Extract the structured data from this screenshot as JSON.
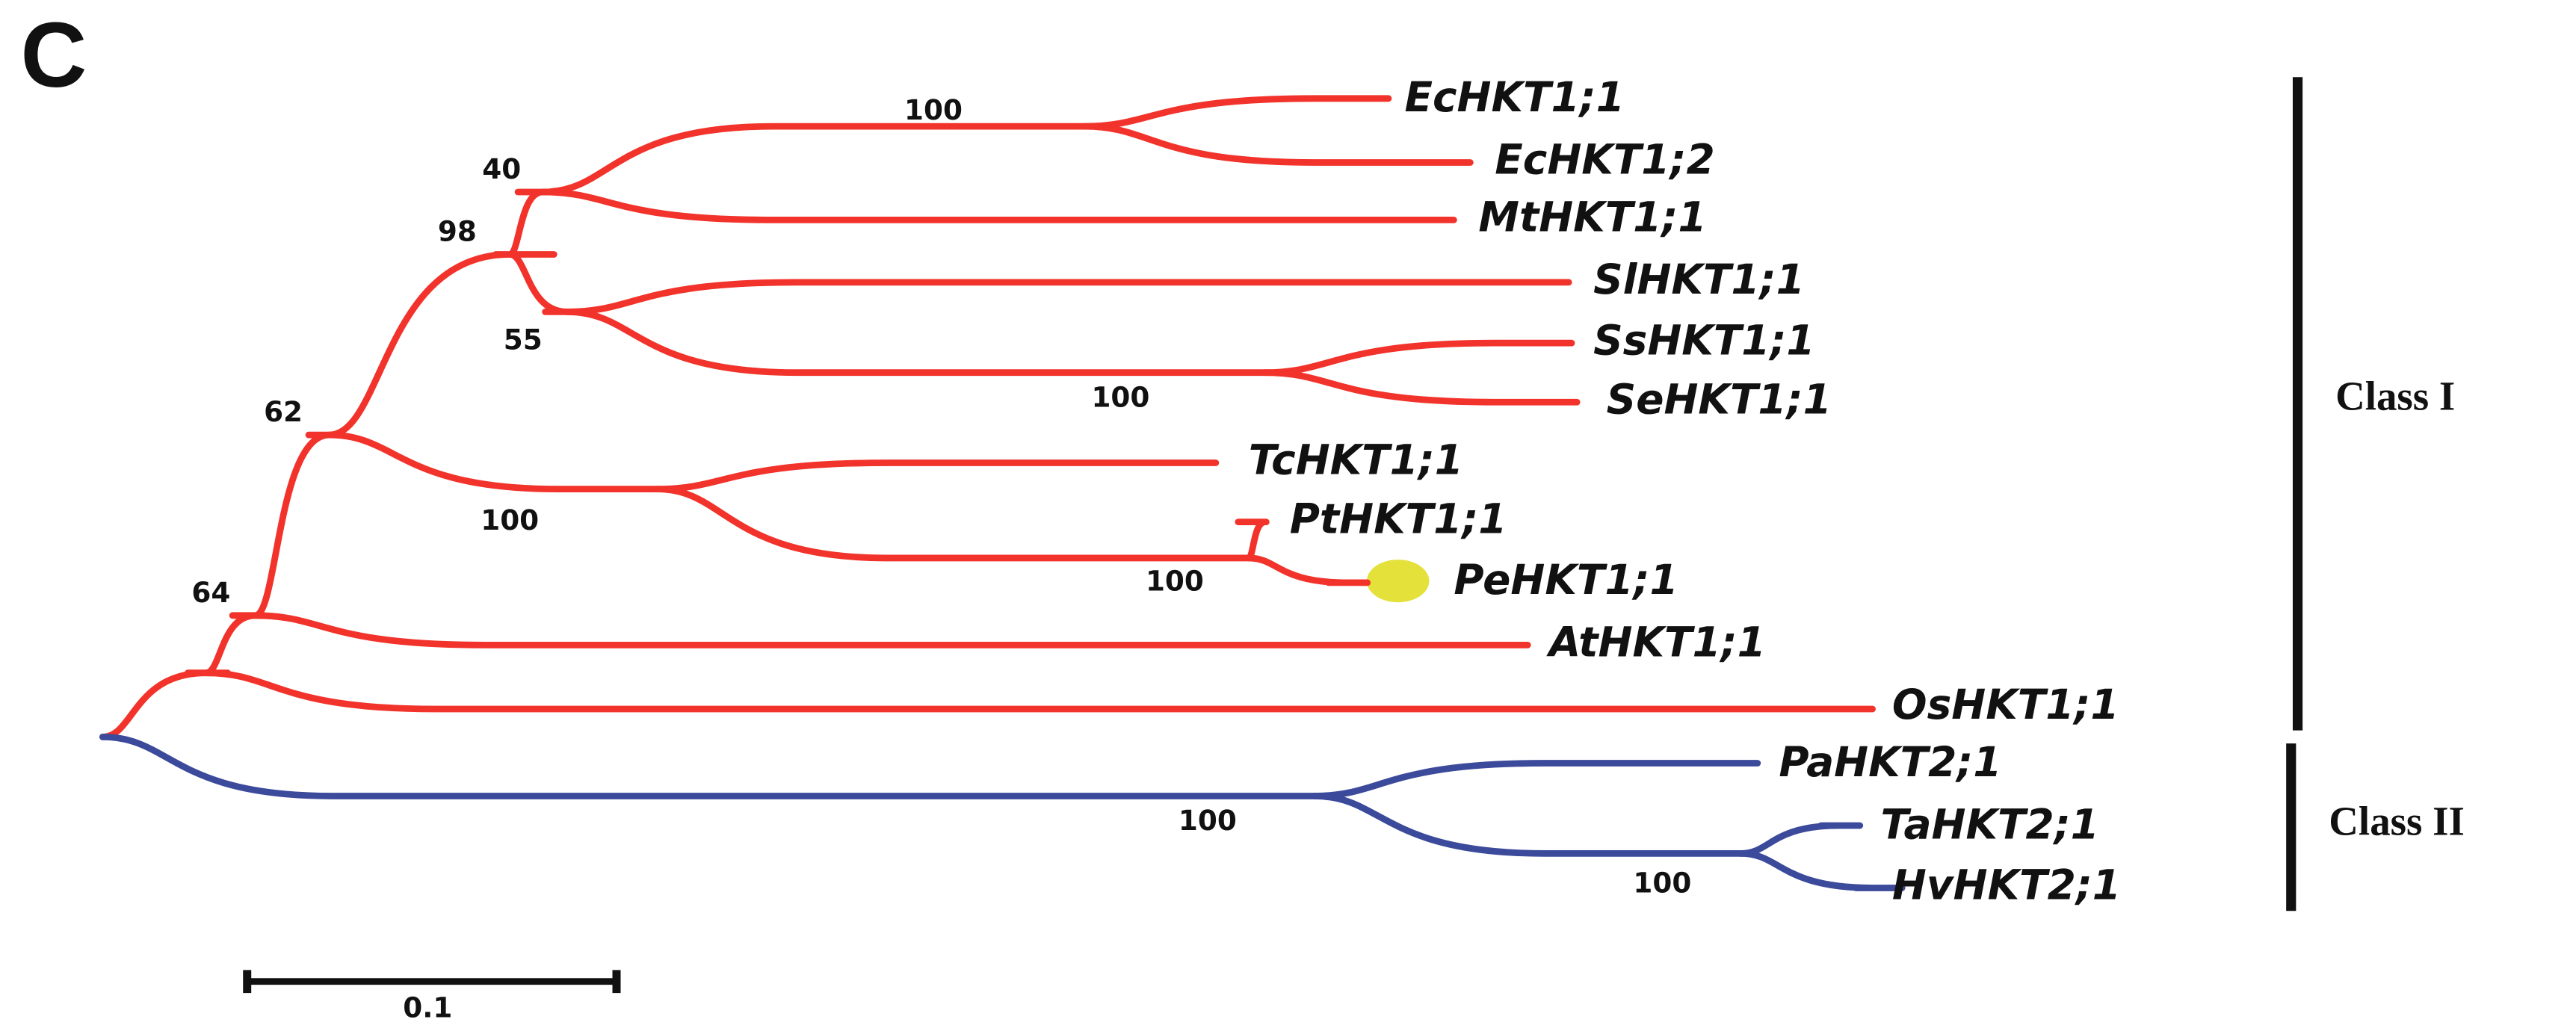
{
  "panel_label": "C",
  "leaves": [
    {
      "label": "EcHKT1;1"
    },
    {
      "label": "EcHKT1;2"
    },
    {
      "label": "MtHKT1;1"
    },
    {
      "label": "SlHKT1;1"
    },
    {
      "label": "SsHKT1;1"
    },
    {
      "label": "SeHKT1;1"
    },
    {
      "label": "TcHKT1;1"
    },
    {
      "label": "PtHKT1;1"
    },
    {
      "label": "PeHKT1;1"
    },
    {
      "label": "AtHKT1;1"
    },
    {
      "label": "OsHKT1;1"
    },
    {
      "label": "PaHKT2;1"
    },
    {
      "label": "TaHKT2;1"
    },
    {
      "label": "HvHKT2;1"
    }
  ],
  "bootstrap": [
    "100",
    "40",
    "98",
    "55",
    "100",
    "62",
    "100",
    "100",
    "64",
    "100",
    "100"
  ],
  "classes": [
    {
      "label": "Class I"
    },
    {
      "label": "Class II"
    }
  ],
  "scale_bar": "0.1"
}
